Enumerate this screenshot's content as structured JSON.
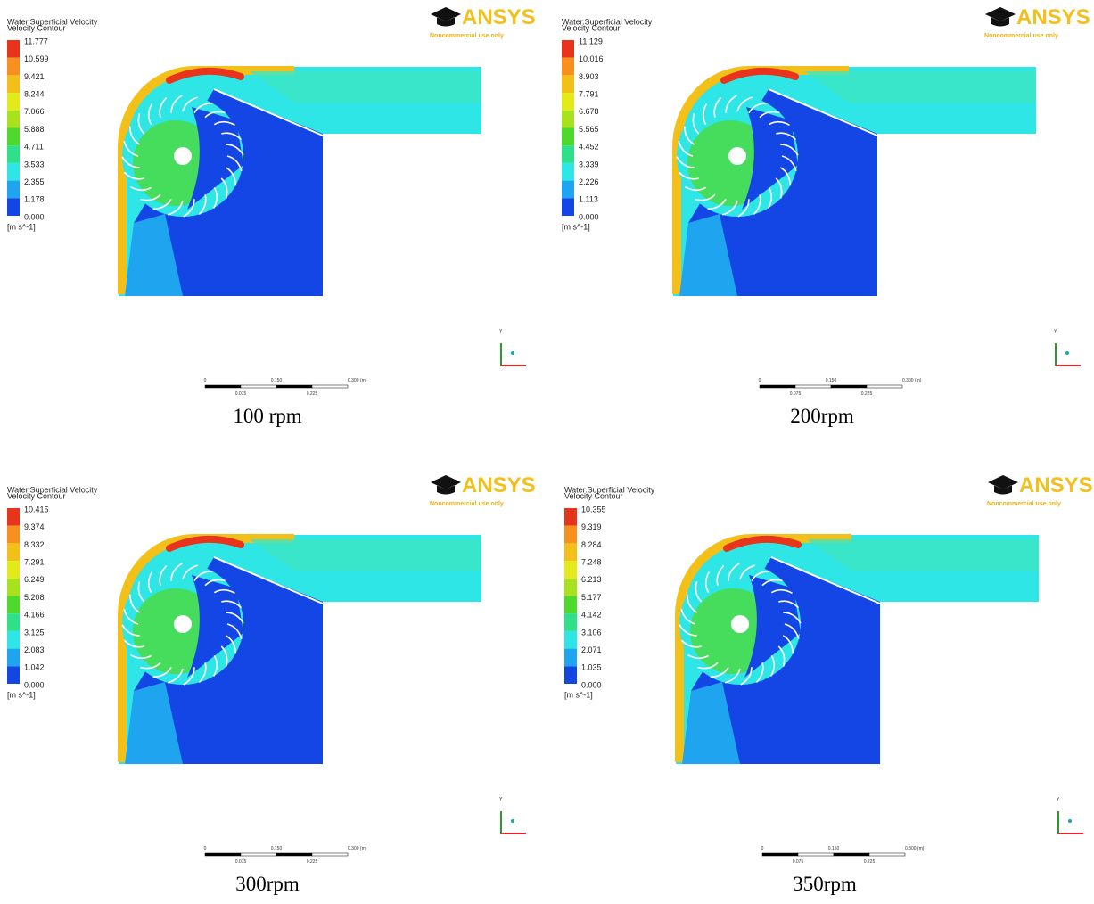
{
  "panels": [
    {
      "legend": {
        "title": "Water.Superficial Velocity",
        "subtitle": "Velocity Contour",
        "values": [
          "11.777",
          "10.599",
          "9.421",
          "8.244",
          "7.066",
          "5.888",
          "4.711",
          "3.533",
          "2.355",
          "1.178",
          "0.000"
        ],
        "unit": "[m s^-1]"
      },
      "logo": {
        "brand": "ANSYS",
        "note": "Noncommercial use only"
      },
      "scale": {
        "top": [
          "0",
          "0.150",
          "0.300 (m)"
        ],
        "bottom": [
          "0.075",
          "0.225"
        ]
      },
      "axis": "Y",
      "caption": "100 rpm"
    },
    {
      "legend": {
        "title": "Water.Superficial Velocity",
        "subtitle": "Velocity Contour",
        "values": [
          "11.129",
          "10.016",
          "8.903",
          "7.791",
          "6.678",
          "5.565",
          "4.452",
          "3.339",
          "2.226",
          "1.113",
          "0.000"
        ],
        "unit": "[m s^-1]"
      },
      "logo": {
        "brand": "ANSYS",
        "note": "Noncommercial use only"
      },
      "scale": {
        "top": [
          "0",
          "0.150",
          "0.300 (m)"
        ],
        "bottom": [
          "0.075",
          "0.225"
        ]
      },
      "axis": "Y",
      "caption": "200rpm"
    },
    {
      "legend": {
        "title": "Water.Superficial Velocity",
        "subtitle": "Velocity Contour",
        "values": [
          "10.415",
          "9.374",
          "8.332",
          "7.291",
          "6.249",
          "5.208",
          "4.166",
          "3.125",
          "2.083",
          "1.042",
          "0.000"
        ],
        "unit": "[m s^-1]"
      },
      "logo": {
        "brand": "ANSYS",
        "note": "Noncommercial use only"
      },
      "scale": {
        "top": [
          "0",
          "0.150",
          "0.300 (m)"
        ],
        "bottom": [
          "0.075",
          "0.225"
        ]
      },
      "axis": "Y",
      "caption": "300rpm"
    },
    {
      "legend": {
        "title": "Water.Superficial Velocity",
        "subtitle": "Velocity Contour",
        "values": [
          "10.355",
          "9.319",
          "8.284",
          "7.248",
          "6.213",
          "5.177",
          "4.142",
          "3.106",
          "2.071",
          "1.035",
          "0.000"
        ],
        "unit": "[m s^-1]"
      },
      "logo": {
        "brand": "ANSYS",
        "note": "Noncommercial use only"
      },
      "scale": {
        "top": [
          "0",
          "0.150",
          "0.300 (m)"
        ],
        "bottom": [
          "0.075",
          "0.225"
        ]
      },
      "axis": "Y",
      "caption": "350rpm"
    }
  ]
}
